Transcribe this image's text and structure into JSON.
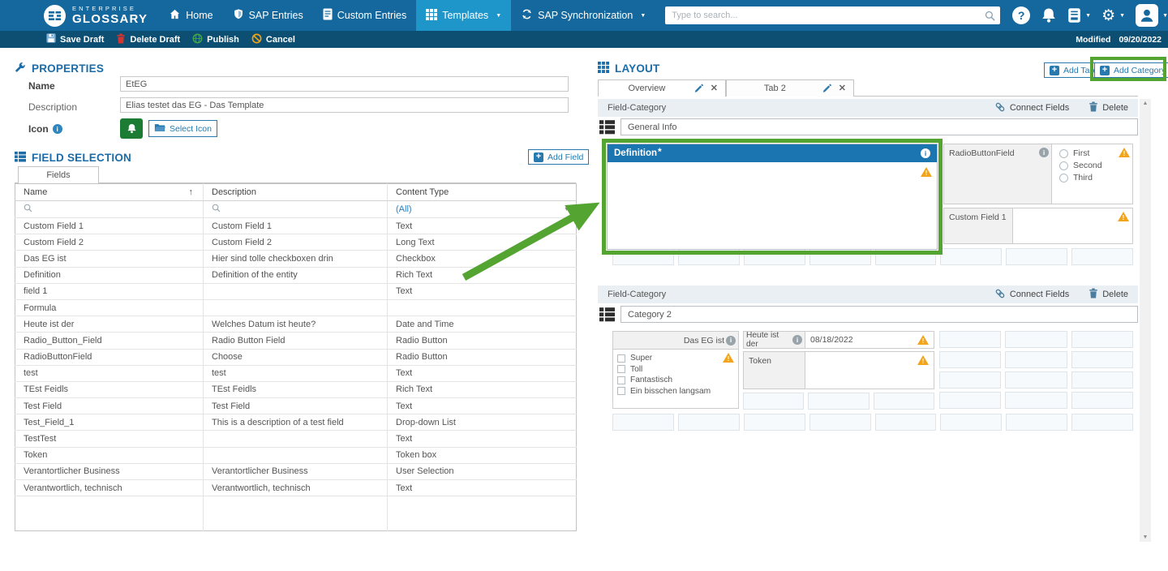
{
  "navbar": {
    "brand_top": "ENTERPRISE",
    "brand_bottom": "GLOSSARY",
    "home": "Home",
    "sap_entries": "SAP Entries",
    "custom_entries": "Custom Entries",
    "templates": "Templates",
    "sap_sync": "SAP Synchronization",
    "search_placeholder": "Type to search...",
    "help_glyph": "?",
    "gear_glyph": "⚙"
  },
  "toolbar": {
    "save_draft": "Save Draft",
    "delete_draft": "Delete Draft",
    "publish": "Publish",
    "cancel": "Cancel",
    "modified_label": "Modified",
    "modified_date": "09/20/2022"
  },
  "properties": {
    "title": "PROPERTIES",
    "name_label": "Name",
    "name_value": "EtEG",
    "description_label": "Description",
    "description_value": "Elias testet das EG - Das Template",
    "icon_label": "Icon",
    "select_icon": "Select Icon"
  },
  "field_selection": {
    "title": "FIELD SELECTION",
    "add_field": "Add Field",
    "tab": "Fields",
    "col_name": "Name",
    "col_description": "Description",
    "col_content_type": "Content Type",
    "sort_arrow": "↑",
    "filter_all": "(All)",
    "rows": [
      {
        "name": "Custom Field 1",
        "description": "Custom Field 1",
        "content_type": "Text"
      },
      {
        "name": "Custom Field 2",
        "description": "Custom Field 2",
        "content_type": "Long Text"
      },
      {
        "name": "Das EG ist",
        "description": "Hier sind tolle checkboxen drin",
        "content_type": "Checkbox"
      },
      {
        "name": "Definition",
        "description": "Definition of the entity",
        "content_type": "Rich Text"
      },
      {
        "name": "field 1",
        "description": "",
        "content_type": "Text"
      },
      {
        "name": "Formula",
        "description": "",
        "content_type": ""
      },
      {
        "name": "Heute ist der",
        "description": "Welches Datum ist heute?",
        "content_type": "Date and Time"
      },
      {
        "name": "Radio_Button_Field",
        "description": "Radio Button Field",
        "content_type": "Radio Button"
      },
      {
        "name": "RadioButtonField",
        "description": "Choose",
        "content_type": "Radio Button"
      },
      {
        "name": "test",
        "description": "test",
        "content_type": "Text"
      },
      {
        "name": "TEst Feidls",
        "description": "TEst Feidls",
        "content_type": "Rich Text"
      },
      {
        "name": "Test Field",
        "description": "Test Field",
        "content_type": "Text"
      },
      {
        "name": "Test_Field_1",
        "description": "This is a description of a test field",
        "content_type": "Drop-down List"
      },
      {
        "name": "TestTest",
        "description": "",
        "content_type": "Text"
      },
      {
        "name": "Token",
        "description": "",
        "content_type": "Token box"
      },
      {
        "name": "Verantortlicher Business",
        "description": "Verantortlicher Business",
        "content_type": "User Selection"
      },
      {
        "name": "Verantwortlich, technisch",
        "description": "Verantwortlich, technisch",
        "content_type": "Text"
      }
    ]
  },
  "layout": {
    "title": "LAYOUT",
    "add_tab": "Add Tab",
    "add_category": "Add Category",
    "tab1": "Overview",
    "tab2": "Tab 2",
    "tab_close_glyph": "✕",
    "category_header": "Field-Category",
    "connect_fields": "Connect Fields",
    "delete": "Delete",
    "category1_name": "General Info",
    "category2_name": "Category 2",
    "definition_label": "Definition",
    "required_mark": "*",
    "info_glyph": "i",
    "radio_field_label": "RadioButtonField",
    "radio_options": [
      "First",
      "Second",
      "Third"
    ],
    "custom_field_label": "Custom Field 1",
    "checkbox_field_label": "Das EG ist",
    "checkbox_options": [
      "Super",
      "Toll",
      "Fantastisch",
      "Ein bisschen langsam"
    ],
    "date_field_label": "Heute ist der",
    "date_field_value": "08/18/2022",
    "token_field_label": "Token",
    "scroll_up_glyph": "▲",
    "scroll_down_glyph": "▼"
  },
  "colors": {
    "navbar_bg": "#14689D",
    "toolbar_bg": "#0D4F72",
    "active_nav_bg": "#1E96CA",
    "heading_blue": "#1B6CA8",
    "widget_header_blue": "#1B75B1",
    "annotation_green": "#54A431",
    "warning_orange": "#F2A41B",
    "icon_chip_green": "#1D7C34",
    "link_blue": "#2A7FC1"
  }
}
